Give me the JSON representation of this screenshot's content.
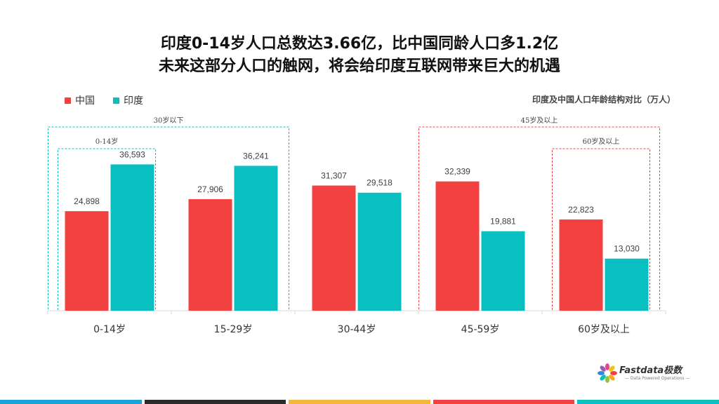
{
  "header": {
    "line1": "印度0-14岁人口总数达3.66亿，比中国同龄人口多1.2亿",
    "line2": "未来这部分人口的触网，将会给印度互联网带来巨大的机遇"
  },
  "chart_data": {
    "type": "bar",
    "title": "印度及中国人口年龄结构对比（万人）",
    "categories": [
      "0-14岁",
      "15-29岁",
      "30-44岁",
      "45-59岁",
      "60岁及以上"
    ],
    "series": [
      {
        "name": "中国",
        "color": "#F34141",
        "values": [
          24898,
          27906,
          31307,
          32339,
          22823
        ]
      },
      {
        "name": "印度",
        "color": "#0ABFC1",
        "values": [
          36593,
          36241,
          29518,
          19881,
          13030
        ]
      }
    ],
    "value_labels": [
      [
        "24,898",
        "27,906",
        "31,307",
        "32,339",
        "22,823"
      ],
      [
        "36,593",
        "36,241",
        "29,518",
        "19,881",
        "13,030"
      ]
    ],
    "ylim": [
      0,
      40000
    ],
    "grid": false,
    "legend": "top-left",
    "groups": [
      {
        "label": "30岁以下",
        "categories": [
          0,
          1
        ],
        "color": "#0ABFC1"
      },
      {
        "label": "0-14岁",
        "categories": [
          0
        ],
        "color": "#0ABFC1"
      },
      {
        "label": "45岁及以上",
        "categories": [
          3,
          4
        ],
        "color": "#F34141"
      },
      {
        "label": "60岁及以上",
        "categories": [
          4
        ],
        "color": "#F34141"
      }
    ]
  },
  "brand": {
    "name": "Fastdata极数",
    "tagline": "Data Powered Operations",
    "petal_colors": [
      "#F34141",
      "#F7A81B",
      "#8CC63F",
      "#0ABFC1",
      "#2E8BD8",
      "#9B59B6",
      "#E84393",
      "#F1C40F"
    ]
  },
  "footer": {
    "bar_colors": [
      "#1AA3D9",
      "#2B2B2B",
      "#F3B73C",
      "#F34141",
      "#0ABFC1"
    ]
  }
}
